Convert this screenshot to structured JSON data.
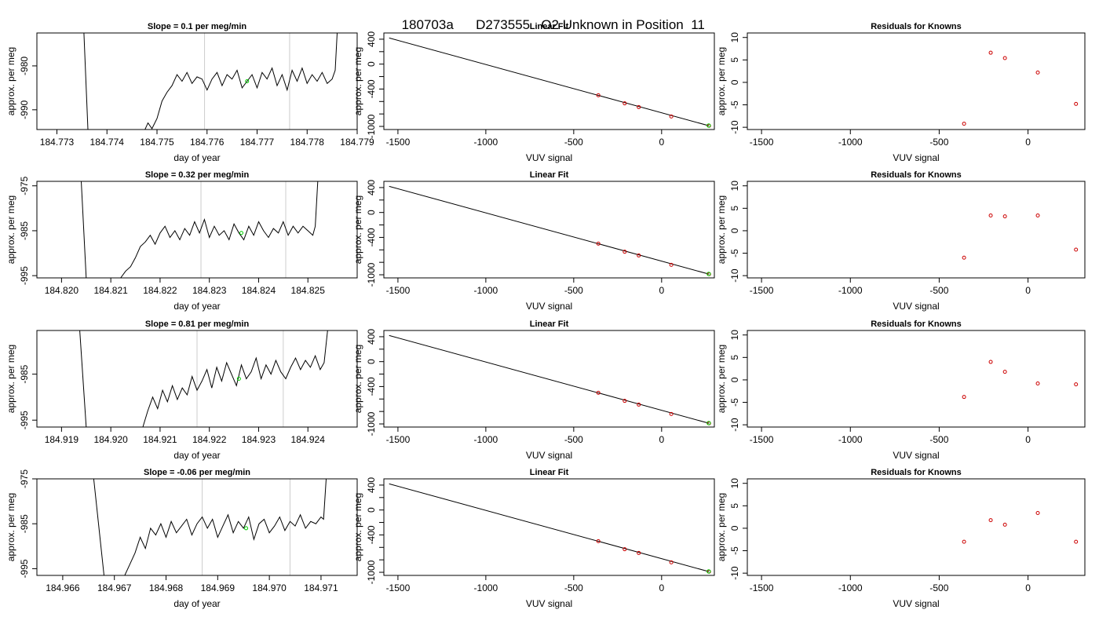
{
  "page": {
    "title_run": "180703a",
    "title_id": "D273555",
    "title_desc": "O2 Unknown in Position  11"
  },
  "colors": {
    "line": "#000000",
    "known_points": "#cc0000",
    "unknown_points": "#00cc00",
    "vertical_markers": "#cccccc"
  },
  "chart_data": [
    {
      "row": 1,
      "type": "line",
      "title": "Slope =  0.1  per meg/min",
      "xlabel": "day of year",
      "ylabel": "approx. per meg",
      "xlim": [
        184.7726,
        184.779
      ],
      "ylim": [
        -994.5,
        -972.5
      ],
      "xticks": [
        "184.773",
        "184.774",
        "184.775",
        "184.776",
        "184.777",
        "184.778",
        "184.779"
      ],
      "yticks": [
        "-980",
        "-990"
      ],
      "vlines": [
        184.77595,
        184.77765
      ],
      "green_point": {
        "x": 184.7768,
        "y": -983.5
      },
      "x": [
        184.77354,
        184.77362,
        184.77476,
        184.77482,
        184.7749,
        184.775,
        184.7751,
        184.7752,
        184.7753,
        184.7754,
        184.7755,
        184.7756,
        184.7757,
        184.7758,
        184.7759,
        184.776,
        184.7761,
        184.7762,
        184.7763,
        184.7764,
        184.7765,
        184.7766,
        184.7767,
        184.7768,
        184.7769,
        184.777,
        184.7771,
        184.7772,
        184.7773,
        184.7774,
        184.7775,
        184.7776,
        184.7777,
        184.7778,
        184.7779,
        184.778,
        184.7781,
        184.7782,
        184.7783,
        184.7784,
        184.7785,
        184.77856,
        184.7786
      ],
      "y": [
        -972.5,
        -994.5,
        -994.5,
        -993.0,
        -994.3,
        -992.0,
        -988.0,
        -986.0,
        -984.5,
        -982.0,
        -983.5,
        -981.5,
        -984.0,
        -982.5,
        -983.0,
        -985.5,
        -983.0,
        -981.5,
        -984.5,
        -982.0,
        -983.0,
        -981.0,
        -985.0,
        -983.5,
        -982.0,
        -985.0,
        -981.5,
        -983.0,
        -980.5,
        -984.5,
        -982.0,
        -985.5,
        -981.0,
        -983.5,
        -980.5,
        -984.0,
        -982.0,
        -983.5,
        -981.5,
        -984.0,
        -983.0,
        -981.0,
        -972.5
      ],
      "fit": {
        "title": "Linear Fit",
        "xlabel": "VUV signal",
        "ylabel": "approx. per meg",
        "xlim": [
          -1580,
          300
        ],
        "ylim": [
          -1050,
          500
        ],
        "xticks": [
          -1500,
          -1000,
          -500,
          0
        ],
        "yticks": [
          400,
          0,
          -400,
          -1000
        ],
        "yticks_minor": [
          200,
          -200,
          -600,
          -800
        ],
        "line_x": [
          -1550,
          270
        ],
        "line_y": [
          420,
          -990
        ],
        "knowns_x": [
          -360,
          -210,
          -130,
          55,
          270
        ],
        "knowns_y": [
          -500,
          -630,
          -690,
          -840,
          -990
        ],
        "unknown": {
          "x": 268,
          "y": -986
        }
      },
      "residuals": {
        "title": "Residuals for Knowns",
        "xlabel": "VUV signal",
        "xlim": [
          -1580,
          320
        ],
        "ylim": [
          -10.5,
          11
        ],
        "xticks": [
          -1500,
          -1000,
          -500,
          0
        ],
        "yticks": [
          10,
          5,
          0,
          -5,
          -10
        ],
        "x": [
          -360,
          -210,
          -130,
          55,
          270
        ],
        "y": [
          -9.2,
          6.6,
          5.4,
          2.2,
          -4.8
        ]
      }
    },
    {
      "row": 2,
      "type": "line",
      "title": "Slope =  0.32  per meg/min",
      "xlabel": "day of year",
      "ylabel": "approx. per meg",
      "xlim": [
        184.8195,
        184.826
      ],
      "ylim": [
        -995.5,
        -974.0
      ],
      "xticks": [
        "184.820",
        "184.821",
        "184.822",
        "184.823",
        "184.824",
        "184.825"
      ],
      "yticks": [
        "-975",
        "-985",
        "-995"
      ],
      "vlines": [
        184.82283,
        184.82455
      ],
      "green_point": {
        "x": 184.82365,
        "y": -985.5
      },
      "x": [
        184.8204,
        184.8205,
        184.8212,
        184.8213,
        184.8214,
        184.8215,
        184.8216,
        184.8217,
        184.8218,
        184.8219,
        184.822,
        184.8221,
        184.8222,
        184.8223,
        184.8224,
        184.8225,
        184.8226,
        184.8227,
        184.8228,
        184.8229,
        184.823,
        184.8231,
        184.8232,
        184.8233,
        184.8234,
        184.8235,
        184.8236,
        184.8237,
        184.8238,
        184.8239,
        184.824,
        184.8241,
        184.8242,
        184.8243,
        184.8244,
        184.8245,
        184.8246,
        184.8247,
        184.8248,
        184.8249,
        184.825,
        184.8251,
        184.82515,
        184.8252
      ],
      "y": [
        -974.0,
        -995.5,
        -995.5,
        -994.0,
        -993.0,
        -991.0,
        -988.5,
        -987.5,
        -986.0,
        -988.0,
        -985.5,
        -984.0,
        -986.5,
        -985.0,
        -987.0,
        -984.5,
        -986.0,
        -983.0,
        -985.5,
        -982.5,
        -986.5,
        -984.0,
        -986.0,
        -985.0,
        -987.0,
        -983.5,
        -985.5,
        -987.0,
        -984.0,
        -986.0,
        -983.0,
        -985.0,
        -986.5,
        -984.5,
        -985.5,
        -983.0,
        -986.0,
        -984.0,
        -985.5,
        -984.0,
        -985.0,
        -986.0,
        -984.0,
        -974.0
      ],
      "fit": {
        "title": "Linear Fit",
        "xlabel": "VUV signal",
        "ylabel": "approx. per meg",
        "xlim": [
          -1580,
          300
        ],
        "ylim": [
          -1050,
          500
        ],
        "xticks": [
          -1500,
          -1000,
          -500,
          0
        ],
        "yticks": [
          400,
          0,
          -400,
          -1000
        ],
        "yticks_minor": [
          200,
          -200,
          -600,
          -800
        ],
        "line_x": [
          -1550,
          270
        ],
        "line_y": [
          420,
          -990
        ],
        "knowns_x": [
          -360,
          -210,
          -130,
          55,
          270
        ],
        "knowns_y": [
          -500,
          -630,
          -690,
          -840,
          -990
        ],
        "unknown": {
          "x": 268,
          "y": -986
        }
      },
      "residuals": {
        "title": "Residuals for Knowns",
        "xlabel": "VUV signal",
        "xlim": [
          -1580,
          320
        ],
        "ylim": [
          -10.5,
          11
        ],
        "xticks": [
          -1500,
          -1000,
          -500,
          0
        ],
        "yticks": [
          10,
          5,
          0,
          -5,
          -10
        ],
        "x": [
          -360,
          -210,
          -130,
          55,
          270
        ],
        "y": [
          -6.0,
          3.4,
          3.2,
          3.4,
          -4.2
        ]
      }
    },
    {
      "row": 3,
      "type": "line",
      "title": "Slope =  0.81  per meg/min",
      "xlabel": "day of year",
      "ylabel": "approx. per meg",
      "xlim": [
        184.9185,
        184.925
      ],
      "ylim": [
        -996.5,
        -975.5
      ],
      "xticks": [
        "184.919",
        "184.920",
        "184.921",
        "184.922",
        "184.923",
        "184.924"
      ],
      "yticks": [
        "-985",
        "-995"
      ],
      "vlines": [
        184.92175,
        184.9235
      ],
      "green_point": {
        "x": 184.9226,
        "y": -986.0
      },
      "x": [
        184.91937,
        184.9195,
        184.92065,
        184.92075,
        184.92085,
        184.92095,
        184.92105,
        184.92115,
        184.92125,
        184.92135,
        184.92145,
        184.92155,
        184.92165,
        184.92175,
        184.92185,
        184.92195,
        184.92205,
        184.92215,
        184.92225,
        184.92235,
        184.92245,
        184.92255,
        184.92265,
        184.92275,
        184.92285,
        184.92295,
        184.92305,
        184.92315,
        184.92325,
        184.92335,
        184.92345,
        184.92355,
        184.92365,
        184.92375,
        184.92385,
        184.92395,
        184.92405,
        184.92415,
        184.92425,
        184.92433,
        184.9244
      ],
      "y": [
        -975.5,
        -996.5,
        -996.5,
        -993.0,
        -990.0,
        -992.5,
        -988.5,
        -991.0,
        -987.5,
        -990.5,
        -988.0,
        -989.5,
        -985.5,
        -988.5,
        -986.5,
        -984.0,
        -988.0,
        -983.5,
        -986.5,
        -982.5,
        -985.0,
        -987.5,
        -983.0,
        -986.0,
        -984.5,
        -981.5,
        -986.0,
        -983.0,
        -985.0,
        -982.0,
        -984.5,
        -986.0,
        -983.5,
        -981.5,
        -984.0,
        -982.0,
        -983.5,
        -981.0,
        -984.0,
        -982.5,
        -975.5
      ],
      "fit": {
        "title": "Linear Fit",
        "xlabel": "VUV signal",
        "ylabel": "approx. per meg",
        "xlim": [
          -1580,
          300
        ],
        "ylim": [
          -1050,
          500
        ],
        "xticks": [
          -1500,
          -1000,
          -500,
          0
        ],
        "yticks": [
          400,
          0,
          -400,
          -1000
        ],
        "yticks_minor": [
          200,
          -200,
          -600,
          -800
        ],
        "line_x": [
          -1550,
          270
        ],
        "line_y": [
          420,
          -990
        ],
        "knowns_x": [
          -360,
          -210,
          -130,
          55,
          270
        ],
        "knowns_y": [
          -500,
          -630,
          -690,
          -840,
          -990
        ],
        "unknown": {
          "x": 268,
          "y": -986
        }
      },
      "residuals": {
        "title": "Residuals for Knowns",
        "xlabel": "VUV signal",
        "xlim": [
          -1580,
          320
        ],
        "ylim": [
          -10.5,
          11
        ],
        "xticks": [
          -1500,
          -1000,
          -500,
          0
        ],
        "yticks": [
          10,
          5,
          0,
          -5,
          -10
        ],
        "x": [
          -360,
          -210,
          -130,
          55,
          270
        ],
        "y": [
          -3.8,
          4.0,
          1.8,
          -0.8,
          -1.0
        ]
      }
    },
    {
      "row": 4,
      "type": "line",
      "title": "Slope =  -0.06  per meg/min",
      "xlabel": "day of year",
      "ylabel": "approx. per meg",
      "xlim": [
        184.9655,
        184.9717
      ],
      "ylim": [
        -996.5,
        -975.0
      ],
      "xticks": [
        "184.966",
        "184.967",
        "184.968",
        "184.969",
        "184.970",
        "184.971"
      ],
      "yticks": [
        "-975",
        "-985",
        "-995"
      ],
      "vlines": [
        184.9687,
        184.9704
      ],
      "green_point": {
        "x": 184.96955,
        "y": -986.0
      },
      "x": [
        184.9666,
        184.9668,
        184.9672,
        184.9673,
        184.9674,
        184.9675,
        184.9676,
        184.9677,
        184.9678,
        184.9679,
        184.968,
        184.9681,
        184.9682,
        184.9683,
        184.9684,
        184.9685,
        184.9686,
        184.9687,
        184.9688,
        184.9689,
        184.969,
        184.9691,
        184.9692,
        184.9693,
        184.9694,
        184.9695,
        184.9696,
        184.9697,
        184.9698,
        184.9699,
        184.97,
        184.9701,
        184.9702,
        184.9703,
        184.9704,
        184.9705,
        184.9706,
        184.9707,
        184.9708,
        184.9709,
        184.971,
        184.97105,
        184.9711
      ],
      "y": [
        -975.0,
        -996.5,
        -996.5,
        -994.0,
        -991.5,
        -988.0,
        -990.5,
        -986.0,
        -987.5,
        -985.0,
        -988.0,
        -984.5,
        -987.0,
        -985.5,
        -984.0,
        -987.5,
        -985.0,
        -983.5,
        -986.0,
        -984.0,
        -988.0,
        -985.5,
        -983.0,
        -987.0,
        -984.5,
        -986.0,
        -983.5,
        -988.5,
        -985.0,
        -984.0,
        -987.0,
        -985.5,
        -983.5,
        -986.5,
        -984.5,
        -985.5,
        -983.0,
        -986.0,
        -984.5,
        -985.0,
        -983.5,
        -984.0,
        -975.0
      ],
      "fit": {
        "title": "Linear Fit",
        "xlabel": "VUV signal",
        "ylabel": "approx. per meg",
        "xlim": [
          -1580,
          300
        ],
        "ylim": [
          -1050,
          500
        ],
        "xticks": [
          -1500,
          -1000,
          -500,
          0
        ],
        "yticks": [
          400,
          0,
          -400,
          -1000
        ],
        "yticks_minor": [
          200,
          -200,
          -600,
          -800
        ],
        "line_x": [
          -1550,
          270
        ],
        "line_y": [
          420,
          -990
        ],
        "knowns_x": [
          -360,
          -210,
          -130,
          55,
          270
        ],
        "knowns_y": [
          -500,
          -630,
          -690,
          -840,
          -990
        ],
        "unknown": {
          "x": 268,
          "y": -986
        }
      },
      "residuals": {
        "title": "Residuals for Knowns",
        "xlabel": "VUV signal",
        "xlim": [
          -1580,
          320
        ],
        "ylim": [
          -10.5,
          11
        ],
        "xticks": [
          -1500,
          -1000,
          -500,
          0
        ],
        "yticks": [
          10,
          5,
          0,
          -5,
          -10
        ],
        "x": [
          -360,
          -210,
          -130,
          55,
          270
        ],
        "y": [
          -3.0,
          1.8,
          0.8,
          3.4,
          -3.0
        ]
      }
    }
  ]
}
